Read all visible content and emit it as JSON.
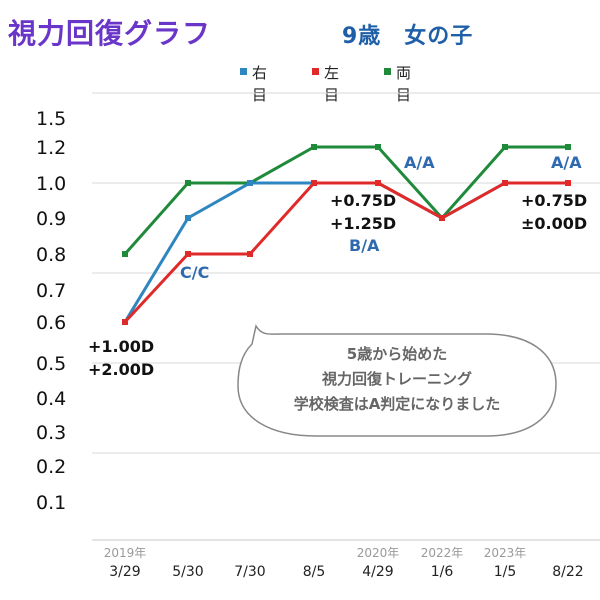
{
  "title": "視力回復グラフ",
  "subtitle": "9歳　女の子",
  "note": [
    "5歳から始めた",
    "視力回復トレーニング",
    "学校検査はA判定になりました"
  ],
  "colors": {
    "right": "#2e86c1",
    "left": "#e02a2a",
    "both": "#1e8a3a",
    "annot": "#2f6ab0",
    "grid": "#d9d9d9",
    "title": "#6a35c9"
  },
  "chart_data": {
    "type": "line",
    "title": "視力回復グラフ",
    "categories": [
      "3/29",
      "5/30",
      "7/30",
      "8/5",
      "4/29",
      "1/6",
      "1/5",
      "8/22"
    ],
    "year_labels": [
      "2019年",
      "",
      "",
      "",
      "2020年",
      "2022年",
      "2023年",
      ""
    ],
    "y_ticks": [
      "0.1",
      "0.2",
      "0.3",
      "0.4",
      "0.5",
      "0.6",
      "0.7",
      "0.8",
      "0.9",
      "1.0",
      "1.2",
      "1.5"
    ],
    "series": [
      {
        "name": "右目",
        "color": "#2e86c1",
        "values": [
          0.6,
          0.9,
          1.0,
          1.0,
          1.0,
          0.9,
          1.0,
          1.0
        ]
      },
      {
        "name": "左目",
        "color": "#e02a2a",
        "values": [
          0.6,
          0.8,
          0.8,
          1.0,
          1.0,
          0.9,
          1.0,
          1.0
        ]
      },
      {
        "name": "両目",
        "color": "#1e8a3a",
        "values": [
          0.8,
          1.0,
          1.0,
          1.2,
          1.2,
          0.9,
          1.2,
          1.2
        ]
      }
    ],
    "annotations": [
      {
        "text": "+1.00D",
        "color": "#111111"
      },
      {
        "text": "+2.00D",
        "color": "#111111"
      },
      {
        "text": "C/C",
        "color": "#2f6ab0"
      },
      {
        "text": "+0.75D",
        "color": "#111111"
      },
      {
        "text": "+1.25D",
        "color": "#111111"
      },
      {
        "text": "B/A",
        "color": "#2f6ab0"
      },
      {
        "text": "A/A",
        "color": "#2f6ab0"
      },
      {
        "text": "A/A",
        "color": "#2f6ab0"
      },
      {
        "text": "+0.75D",
        "color": "#111111"
      },
      {
        "text": "±0.00D",
        "color": "#111111"
      }
    ]
  }
}
